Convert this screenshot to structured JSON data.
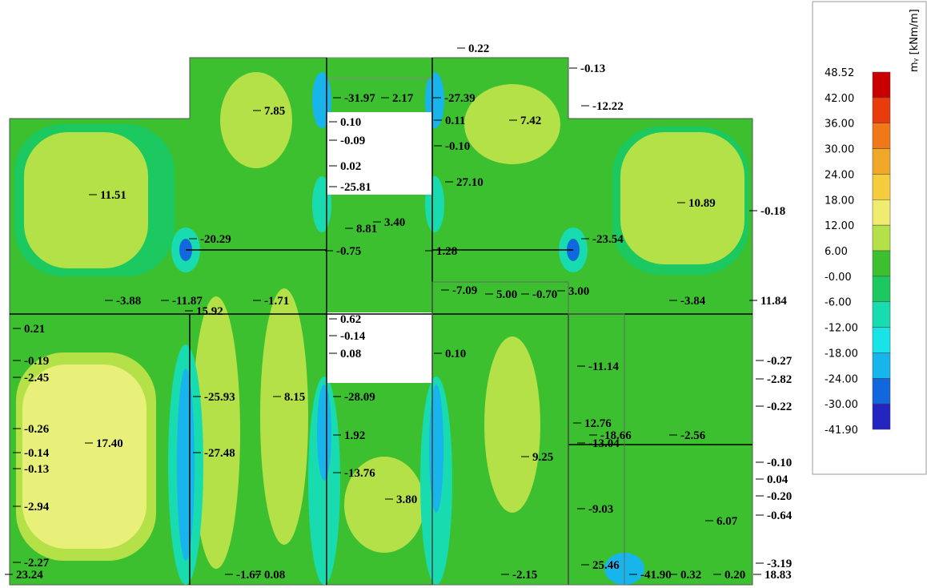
{
  "legend": {
    "title": "mᵧ [kNm/m]",
    "values": [
      "48.52",
      "42.00",
      "36.00",
      "30.00",
      "24.00",
      "18.00",
      "12.00",
      "6.00",
      "-0.00",
      "-6.00",
      "-12.00",
      "-18.00",
      "-24.00",
      "-30.00",
      "-41.90"
    ],
    "colors": [
      "#c80000",
      "#e83c0c",
      "#f07818",
      "#f0a828",
      "#f4cc3c",
      "#f0ec70",
      "#b4e048",
      "#3cc030",
      "#1cc860",
      "#18dcb0",
      "#18e4e8",
      "#18b4ec",
      "#1068dc",
      "#2424c0"
    ]
  },
  "labels": [
    "0.22",
    "-0.13",
    "-31.97",
    "2.17",
    "-27.39",
    "7.85",
    "7.42",
    "-12.22",
    "0.10",
    "-0.09",
    "0.11",
    "-0.10",
    "0.02",
    "-25.81",
    "27.10",
    "11.51",
    "10.89",
    "-0.18",
    "3.40",
    "8.81",
    "-20.29",
    "-23.54",
    "1.28",
    "-0.75",
    "-3.88",
    "-11.87",
    "15.92",
    "-1.71",
    "5.00",
    "-0.70",
    "3.00",
    "-7.09",
    "-3.84",
    "11.84",
    "0.62",
    "-0.14",
    "0.08",
    "0.21",
    "-0.19",
    "-2.45",
    "0.10",
    "-11.14",
    "-0.27",
    "-2.82",
    "-25.93",
    "8.15",
    "-28.09",
    "-0.22",
    "-0.26",
    "12.76",
    "-18.66",
    "-2.56",
    "-0.14",
    "17.40",
    "-27.48",
    "1.92",
    "9.25",
    "-13.04",
    "-0.13",
    "-0.10",
    "-13.76",
    "0.04",
    "-0.20",
    "3.80",
    "-2.94",
    "-9.03",
    "-0.64",
    "6.07",
    "-2.27",
    "23.24",
    "25.46",
    "-41.90",
    "0.32",
    "0.20",
    "-3.19",
    "18.83",
    "-2.15",
    "0.08",
    "-1.67"
  ]
}
